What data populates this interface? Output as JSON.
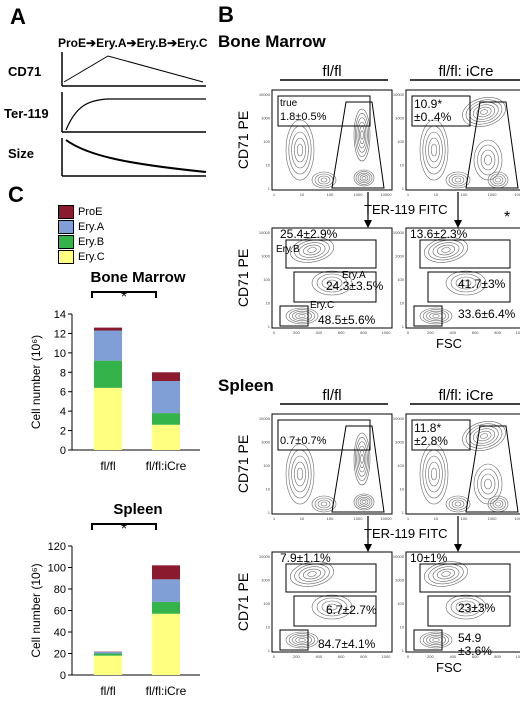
{
  "panel_letters": {
    "a": "A",
    "b": "B",
    "c": "C"
  },
  "panel_a": {
    "stages": [
      "ProE",
      "Ery.A",
      "Ery.B",
      "Ery.C"
    ],
    "markers": [
      "CD71",
      "Ter-119",
      "Size"
    ]
  },
  "panel_b": {
    "bm_title": "Bone Marrow",
    "spleen_title": "Spleen",
    "geno_wt": "fl/fl",
    "geno_ko": "fl/fl: iCre",
    "y_axis": "CD71 PE",
    "x_axis_ter": "TER-119 FITC",
    "x_axis_fsc": "FSC",
    "bm_gate_label": "ProE",
    "bm_wt_proe": "1.8±0.5%",
    "bm_ko_proe": "10.9*\n±0..4%",
    "bm_wt_eryb": "25.4±2.9%",
    "bm_wt_erya": "24.3±3.5%",
    "bm_wt_eryc": "48.5±5.6%",
    "bm_wt_eryb_label": "Ery.B",
    "bm_wt_erya_label": "Ery.A",
    "bm_wt_eryc_label": "Ery.C",
    "bm_ko_eryb": "13.6±2.3%",
    "bm_ko_erya": "41.7±3%",
    "bm_ko_eryc": "33.6±6.4%",
    "sp_wt_proe": "0.7±0.7%",
    "sp_ko_proe": "11.8*\n±2.8%",
    "sp_wt_eryb": "7.9±1.1%",
    "sp_wt_erya": "6.7±2.7%",
    "sp_wt_eryc": "84.7±4.1%",
    "sp_ko_eryb": "10±1%",
    "sp_ko_erya": "23±3%",
    "sp_ko_eryc": "54.9\n±3.6%",
    "star": "*"
  },
  "chart_data": [
    {
      "type": "bar",
      "title": "Bone Marrow",
      "ylabel": "Cell number (10⁶)",
      "categories": [
        "fl/fl",
        "fl/fl:iCre"
      ],
      "ylim": [
        0,
        14
      ],
      "yticks": [
        0,
        2,
        4,
        6,
        8,
        10,
        12,
        14
      ],
      "stacked": true,
      "significance": "*",
      "series": [
        {
          "name": "Ery.C",
          "color": "#ffff80",
          "values": [
            6.4,
            2.6
          ]
        },
        {
          "name": "Ery.B",
          "color": "#33b34a",
          "values": [
            2.8,
            1.2
          ]
        },
        {
          "name": "Ery.A",
          "color": "#7f9fd6",
          "values": [
            3.1,
            3.3
          ]
        },
        {
          "name": "ProE",
          "color": "#8b1a2e",
          "values": [
            0.3,
            0.9
          ]
        }
      ]
    },
    {
      "type": "bar",
      "title": "Spleen",
      "ylabel": "Cell number (10⁶)",
      "categories": [
        "fl/fl",
        "fl/fl:iCre"
      ],
      "ylim": [
        0,
        120
      ],
      "yticks": [
        0,
        20,
        40,
        60,
        80,
        100,
        120
      ],
      "stacked": true,
      "significance": "*",
      "series": [
        {
          "name": "Ery.C",
          "color": "#ffff80",
          "values": [
            18,
            57
          ]
        },
        {
          "name": "Ery.B",
          "color": "#33b34a",
          "values": [
            2,
            11
          ]
        },
        {
          "name": "Ery.A",
          "color": "#7f9fd6",
          "values": [
            1.5,
            21
          ]
        },
        {
          "name": "ProE",
          "color": "#8b1a2e",
          "values": [
            0.3,
            13
          ]
        }
      ]
    }
  ],
  "legend": [
    {
      "name": "ProE",
      "color": "#8b1a2e"
    },
    {
      "name": "Ery.A",
      "color": "#7f9fd6"
    },
    {
      "name": "Ery.B",
      "color": "#33b34a"
    },
    {
      "name": "Ery.C",
      "color": "#ffff80"
    }
  ],
  "flow_ticks_y": [
    "10000",
    "1000",
    "100",
    "10",
    "1"
  ],
  "flow_ticks_x": [
    "1",
    "10",
    "100",
    "1000",
    "10000"
  ],
  "fsc_ticks_x": [
    "0",
    "200",
    "400",
    "600",
    "800",
    "1000"
  ]
}
